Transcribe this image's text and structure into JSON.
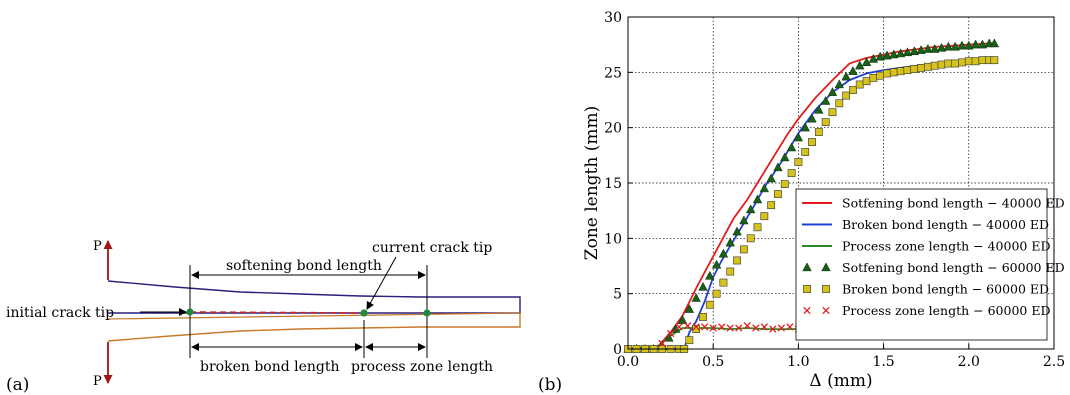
{
  "panel_a": {
    "panel_label": "(a)",
    "load_label_top": "P",
    "load_label_bottom": "P",
    "labels": {
      "softening": "softening bond length",
      "current_tip": "current crack tip",
      "initial_tip": "initial crack tip",
      "broken": "broken bond length",
      "process": "process zone length"
    },
    "colors": {
      "upper_arm": "#2a1f7a",
      "lower_arm": "#c87a2a",
      "crack": "#d02020",
      "node": "#1f8a3a",
      "load": "#a01515"
    }
  },
  "panel_b": {
    "panel_label": "(b)"
  },
  "chart_data": {
    "type": "line",
    "xlabel": "Δ (mm)",
    "ylabel": "Zone length (mm)",
    "xlim": [
      0.0,
      2.5
    ],
    "ylim": [
      0,
      30
    ],
    "xticks": [
      "0.0",
      "0.5",
      "1.0",
      "1.5",
      "2.0",
      "2.5"
    ],
    "yticks": [
      "0",
      "5",
      "10",
      "15",
      "20",
      "25",
      "30"
    ],
    "grid": true,
    "legend_position": "lower-right",
    "series": [
      {
        "name": "Sotfening bond length − 40000 ED",
        "marker": "line",
        "color": "#e41a1c",
        "x": [
          0.0,
          0.18,
          0.25,
          0.32,
          0.4,
          0.48,
          0.55,
          0.62,
          0.7,
          0.78,
          0.86,
          0.94,
          1.0,
          1.1,
          1.2,
          1.3,
          1.4,
          1.5,
          1.6,
          1.7,
          1.8,
          1.9,
          2.0,
          2.1,
          2.15
        ],
        "y": [
          0,
          0.3,
          1.5,
          3.0,
          5.5,
          7.8,
          9.8,
          11.8,
          13.5,
          15.5,
          17.5,
          19.5,
          20.8,
          22.7,
          24.3,
          25.8,
          26.3,
          26.6,
          26.9,
          27.1,
          27.3,
          27.4,
          27.5,
          27.6,
          27.6
        ]
      },
      {
        "name": "Broken bond length − 40000 ED",
        "marker": "line",
        "color": "#1f3fd6",
        "x": [
          0.0,
          0.33,
          0.36,
          0.4,
          0.45,
          0.5,
          0.55,
          0.6,
          0.65,
          0.7,
          0.75,
          0.8,
          0.9,
          1.0,
          1.1,
          1.2,
          1.3,
          1.4,
          1.5,
          1.6,
          1.7,
          1.8,
          1.9,
          2.0,
          2.1,
          2.15
        ],
        "y": [
          0,
          0,
          1.5,
          2.5,
          4.3,
          6.5,
          8.0,
          9.3,
          10.6,
          11.9,
          13.2,
          14.6,
          16.9,
          19.5,
          21.6,
          23.2,
          24.3,
          24.9,
          25.2,
          25.4,
          25.6,
          25.8,
          25.9,
          26.0,
          26.1,
          26.1
        ]
      },
      {
        "name": "Process zone length − 40000 ED",
        "marker": "line",
        "color": "#2a8a2a",
        "x": [
          0.0,
          0.18,
          0.25,
          0.32,
          0.4,
          0.5,
          0.6,
          0.7,
          0.8,
          0.9,
          1.0,
          1.1,
          1.2,
          1.3,
          1.4,
          1.5,
          1.6,
          1.7,
          1.8,
          1.9,
          2.0,
          2.1,
          2.15
        ],
        "y": [
          0,
          0.3,
          1.2,
          1.9,
          1.9,
          1.9,
          1.8,
          1.9,
          1.8,
          1.8,
          1.8,
          1.8,
          1.9,
          1.8,
          1.8,
          1.6,
          1.5,
          1.5,
          1.5,
          1.4,
          1.4,
          1.4,
          1.4
        ]
      },
      {
        "name": "Sotfening bond length − 60000 ED",
        "marker": "triangle",
        "color": "#1a5f1a",
        "x": [
          0.0,
          0.05,
          0.1,
          0.15,
          0.2,
          0.24,
          0.28,
          0.32,
          0.36,
          0.4,
          0.44,
          0.48,
          0.52,
          0.56,
          0.6,
          0.64,
          0.68,
          0.72,
          0.76,
          0.8,
          0.84,
          0.88,
          0.92,
          0.96,
          1.0,
          1.04,
          1.08,
          1.12,
          1.16,
          1.2,
          1.24,
          1.28,
          1.32,
          1.36,
          1.4,
          1.44,
          1.48,
          1.52,
          1.56,
          1.6,
          1.64,
          1.68,
          1.72,
          1.76,
          1.8,
          1.84,
          1.88,
          1.92,
          1.96,
          2.0,
          2.04,
          2.08,
          2.12,
          2.15
        ],
        "y": [
          0,
          0,
          0,
          0,
          0.3,
          1.0,
          1.8,
          2.6,
          3.6,
          4.6,
          5.6,
          6.6,
          7.6,
          8.6,
          9.6,
          10.6,
          11.6,
          12.6,
          13.5,
          14.5,
          15.4,
          16.4,
          17.3,
          18.2,
          19.1,
          20.0,
          20.8,
          21.6,
          22.4,
          23.2,
          23.9,
          24.6,
          25.1,
          25.6,
          25.9,
          26.2,
          26.4,
          26.5,
          26.6,
          26.7,
          26.8,
          26.9,
          27.0,
          27.1,
          27.1,
          27.2,
          27.3,
          27.3,
          27.4,
          27.4,
          27.5,
          27.5,
          27.6,
          27.6
        ]
      },
      {
        "name": "Broken bond length − 60000 ED",
        "marker": "square",
        "color": "#d6c21c",
        "x": [
          0.0,
          0.05,
          0.1,
          0.15,
          0.2,
          0.25,
          0.3,
          0.33,
          0.36,
          0.4,
          0.44,
          0.48,
          0.52,
          0.56,
          0.6,
          0.64,
          0.68,
          0.72,
          0.76,
          0.8,
          0.84,
          0.88,
          0.92,
          0.96,
          1.0,
          1.04,
          1.08,
          1.12,
          1.16,
          1.2,
          1.24,
          1.28,
          1.32,
          1.36,
          1.4,
          1.44,
          1.48,
          1.52,
          1.56,
          1.6,
          1.64,
          1.68,
          1.72,
          1.76,
          1.8,
          1.84,
          1.88,
          1.92,
          1.96,
          2.0,
          2.04,
          2.08,
          2.12,
          2.15
        ],
        "y": [
          0,
          0,
          0,
          0,
          0,
          0,
          0,
          0,
          0.8,
          1.8,
          2.9,
          4.0,
          5.0,
          6.0,
          7.0,
          8.0,
          9.0,
          10.0,
          11.0,
          12.0,
          13.0,
          14.0,
          14.9,
          15.9,
          16.9,
          17.8,
          18.7,
          19.6,
          20.5,
          21.4,
          22.2,
          22.9,
          23.4,
          23.9,
          24.2,
          24.5,
          24.7,
          24.9,
          25.0,
          25.1,
          25.2,
          25.3,
          25.4,
          25.5,
          25.6,
          25.7,
          25.8,
          25.8,
          25.9,
          26.0,
          26.0,
          26.1,
          26.1,
          26.1
        ]
      },
      {
        "name": "Process zone length − 60000 ED",
        "marker": "x",
        "color": "#e41a1c",
        "x": [
          0.2,
          0.25,
          0.3,
          0.35,
          0.4,
          0.45,
          0.5,
          0.55,
          0.6,
          0.65,
          0.7,
          0.75,
          0.8,
          0.85,
          0.9,
          0.95,
          1.0,
          1.05,
          1.1,
          1.15,
          1.2,
          1.25,
          1.3,
          1.35,
          1.4,
          1.45,
          1.5,
          1.55,
          1.6,
          1.65,
          1.7,
          1.75,
          1.8,
          1.85,
          1.9,
          1.95,
          2.0,
          2.05,
          2.1,
          2.15
        ],
        "y": [
          0.5,
          1.4,
          2.0,
          2.1,
          2.0,
          2.0,
          1.9,
          2.0,
          1.9,
          1.9,
          2.1,
          1.9,
          2.0,
          1.8,
          1.9,
          2.0,
          1.8,
          1.9,
          1.9,
          1.9,
          2.0,
          1.9,
          1.8,
          2.0,
          1.8,
          1.7,
          1.8,
          1.7,
          1.6,
          1.7,
          1.5,
          1.6,
          1.5,
          1.6,
          1.4,
          1.5,
          1.4,
          1.5,
          1.3,
          1.4
        ]
      }
    ]
  }
}
